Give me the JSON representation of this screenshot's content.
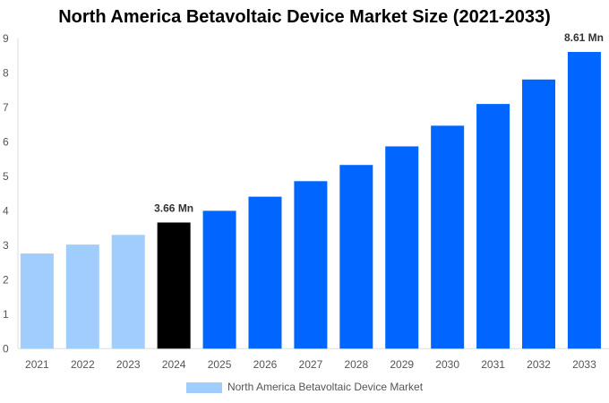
{
  "chart_data": {
    "type": "bar",
    "title": "North America Betavoltaic Device Market Size (2021-2033)",
    "categories": [
      "2021",
      "2022",
      "2023",
      "2024",
      "2025",
      "2026",
      "2027",
      "2028",
      "2029",
      "2030",
      "2031",
      "2032",
      "2033"
    ],
    "series": [
      {
        "name": "North America Betavoltaic Device Market",
        "values": [
          2.76,
          3.02,
          3.3,
          3.66,
          4.0,
          4.41,
          4.86,
          5.33,
          5.87,
          6.47,
          7.1,
          7.81,
          8.61
        ]
      }
    ],
    "bar_colors": [
      "#a0cdfc",
      "#a0cdfc",
      "#a0cdfc",
      "#000000",
      "#0066ff",
      "#0066ff",
      "#0066ff",
      "#0066ff",
      "#0066ff",
      "#0066ff",
      "#0066ff",
      "#0066ff",
      "#0066ff"
    ],
    "data_labels": [
      {
        "index": 3,
        "text": "3.66 Mn"
      },
      {
        "index": 12,
        "text": "8.61 Mn"
      }
    ],
    "yticks": [
      "0",
      "1",
      "2",
      "3",
      "4",
      "5",
      "6",
      "7",
      "8",
      "9"
    ],
    "ylim": [
      0,
      9
    ],
    "xlabel": "",
    "ylabel": "",
    "grid": false,
    "legend_position": "bottom"
  }
}
